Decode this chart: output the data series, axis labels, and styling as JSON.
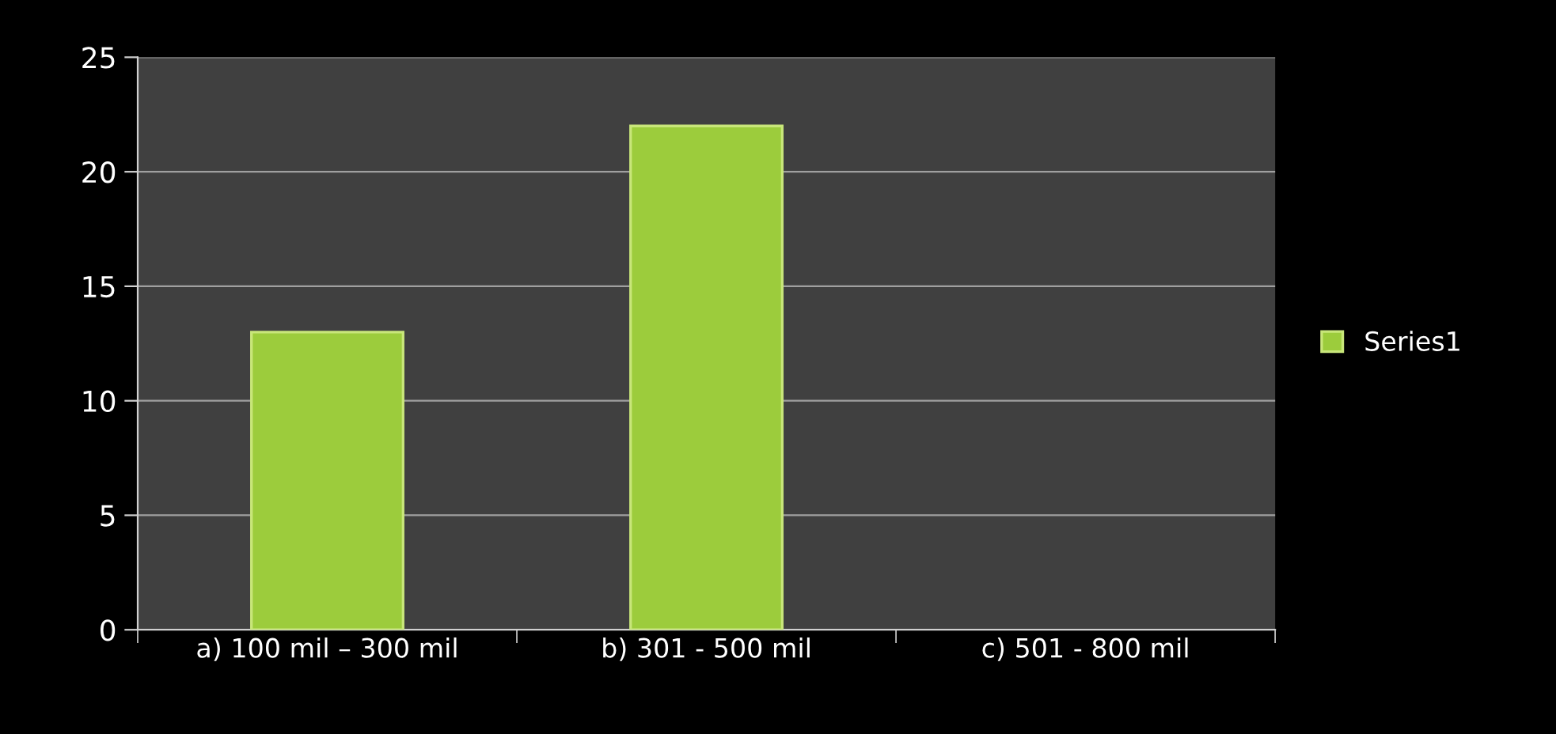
{
  "chart_data": {
    "type": "bar",
    "categories": [
      "a) 100 mil – 300 mil",
      "b) 301 - 500 mil",
      "c) 501 - 800 mil"
    ],
    "series": [
      {
        "name": "Series1",
        "color": "#9ccc3c",
        "values": [
          13,
          22,
          null
        ]
      }
    ],
    "ylim": [
      0,
      25
    ],
    "yticks": [
      0,
      5,
      10,
      15,
      20,
      25
    ],
    "grid": "y",
    "legend": "right"
  }
}
